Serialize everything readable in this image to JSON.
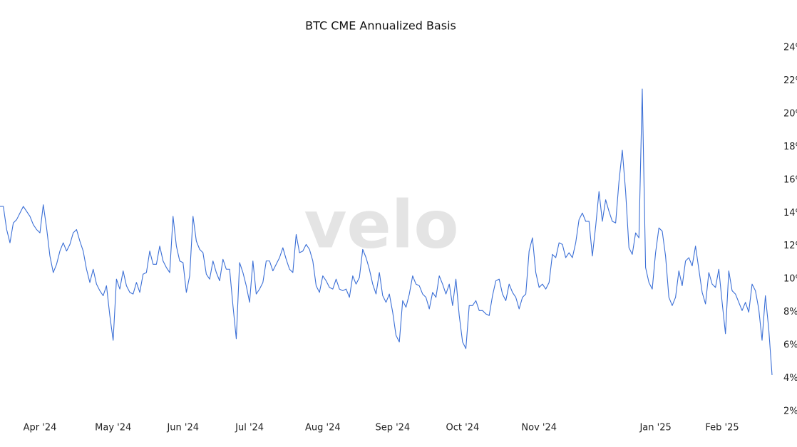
{
  "chart_data": {
    "type": "line",
    "title": "BTC CME Annualized Basis",
    "watermark": "velo",
    "categories": [
      null,
      null,
      null,
      null,
      null,
      null,
      null,
      null,
      null,
      null,
      null,
      null,
      "Apr '24",
      null,
      null,
      null,
      null,
      null,
      null,
      null,
      null,
      null,
      null,
      null,
      null,
      null,
      null,
      null,
      null,
      null,
      null,
      null,
      null,
      null,
      "May '24",
      null,
      null,
      null,
      null,
      null,
      null,
      null,
      null,
      null,
      null,
      null,
      null,
      null,
      null,
      null,
      null,
      null,
      null,
      null,
      null,
      "Jun '24",
      null,
      null,
      null,
      null,
      null,
      null,
      null,
      null,
      null,
      null,
      null,
      null,
      null,
      null,
      null,
      null,
      null,
      null,
      null,
      "Jul '24",
      null,
      null,
      null,
      null,
      null,
      null,
      null,
      null,
      null,
      null,
      null,
      null,
      null,
      null,
      null,
      null,
      null,
      null,
      null,
      null,
      null,
      "Aug '24",
      null,
      null,
      null,
      null,
      null,
      null,
      null,
      null,
      null,
      null,
      null,
      null,
      null,
      null,
      null,
      null,
      null,
      null,
      null,
      null,
      "Sep '24",
      null,
      null,
      null,
      null,
      null,
      null,
      null,
      null,
      null,
      null,
      null,
      null,
      null,
      null,
      null,
      null,
      null,
      null,
      null,
      null,
      "Oct '24",
      null,
      null,
      null,
      null,
      null,
      null,
      null,
      null,
      null,
      null,
      null,
      null,
      null,
      null,
      null,
      null,
      null,
      null,
      null,
      null,
      null,
      null,
      "Nov '24",
      null,
      null,
      null,
      null,
      null,
      null,
      null,
      null,
      null,
      null,
      null,
      null,
      null,
      null,
      null,
      null,
      null,
      null,
      null,
      null,
      null,
      null,
      null,
      null,
      null,
      null,
      null,
      null,
      null,
      null,
      null,
      null,
      null,
      null,
      "Jan '25",
      null,
      null,
      null,
      null,
      null,
      null,
      null,
      null,
      null,
      null,
      null,
      null,
      null,
      null,
      null,
      null,
      null,
      null,
      null,
      "Feb '25",
      null,
      null,
      null,
      null,
      null,
      null,
      null,
      null,
      null,
      null,
      null,
      null,
      null,
      null,
      null
    ],
    "series": [
      {
        "name": "BTC CME Annualized Basis",
        "color": "#3b6fd6",
        "values": [
          14.4,
          14.4,
          13.0,
          12.2,
          13.4,
          13.6,
          14.0,
          14.4,
          14.1,
          13.8,
          13.3,
          13.0,
          12.8,
          14.5,
          13.1,
          11.4,
          10.4,
          10.9,
          11.7,
          12.2,
          11.7,
          12.1,
          12.8,
          13.0,
          12.3,
          11.7,
          10.6,
          9.8,
          10.6,
          9.7,
          9.3,
          9.0,
          9.6,
          7.8,
          6.3,
          10.0,
          9.4,
          10.5,
          9.6,
          9.2,
          9.1,
          9.8,
          9.2,
          10.3,
          10.4,
          11.7,
          10.9,
          10.9,
          12.0,
          11.1,
          10.7,
          10.4,
          13.8,
          12.0,
          11.1,
          11.0,
          9.2,
          10.2,
          13.8,
          12.3,
          11.8,
          11.6,
          10.3,
          10.0,
          11.1,
          10.4,
          9.9,
          11.2,
          10.6,
          10.6,
          8.4,
          6.4,
          11.0,
          10.4,
          9.6,
          8.6,
          11.1,
          9.1,
          9.4,
          9.8,
          11.1,
          11.1,
          10.5,
          10.9,
          11.3,
          11.9,
          11.2,
          10.6,
          10.4,
          12.7,
          11.6,
          11.7,
          12.1,
          11.8,
          11.1,
          9.6,
          9.2,
          10.2,
          9.9,
          9.5,
          9.4,
          10.0,
          9.4,
          9.3,
          9.4,
          8.9,
          10.2,
          9.7,
          10.1,
          11.8,
          11.3,
          10.6,
          9.7,
          9.1,
          10.4,
          9.0,
          8.6,
          9.1,
          8.0,
          6.6,
          6.2,
          8.7,
          8.3,
          9.1,
          10.2,
          9.7,
          9.6,
          9.1,
          8.9,
          8.2,
          9.2,
          8.9,
          10.2,
          9.7,
          9.1,
          9.7,
          8.4,
          10.0,
          7.8,
          6.2,
          5.8,
          8.4,
          8.4,
          8.7,
          8.1,
          8.1,
          7.9,
          7.8,
          9.0,
          9.9,
          10.0,
          9.1,
          8.7,
          9.7,
          9.2,
          8.9,
          8.2,
          8.9,
          9.1,
          11.7,
          12.5,
          10.4,
          9.5,
          9.7,
          9.4,
          9.8,
          11.5,
          11.3,
          12.2,
          12.1,
          11.3,
          11.6,
          11.3,
          12.2,
          13.6,
          14.0,
          13.5,
          13.5,
          11.4,
          13.2,
          15.3,
          13.5,
          14.8,
          14.1,
          13.5,
          13.4,
          15.9,
          17.8,
          15.3,
          11.9,
          11.5,
          12.8,
          12.5,
          21.5,
          10.7,
          9.8,
          9.4,
          11.6,
          13.1,
          12.9,
          11.4,
          8.9,
          8.4,
          8.9,
          10.5,
          9.6,
          11.1,
          11.3,
          10.8,
          12.0,
          10.6,
          9.2,
          8.5,
          10.4,
          9.7,
          9.5,
          10.6,
          8.6,
          6.7,
          10.5,
          9.3,
          9.1,
          8.6,
          8.1,
          8.6,
          8.0,
          9.7,
          9.3,
          8.2,
          6.3,
          9.0,
          7.0,
          4.2
        ]
      }
    ],
    "ylim": [
      2,
      24
    ],
    "yticks": [
      {
        "value": 2,
        "label": "2%"
      },
      {
        "value": 4,
        "label": "4%"
      },
      {
        "value": 6,
        "label": "6%"
      },
      {
        "value": 8,
        "label": "8%"
      },
      {
        "value": 10,
        "label": "10%"
      },
      {
        "value": 12,
        "label": "12%"
      },
      {
        "value": 14,
        "label": "14%"
      },
      {
        "value": 16,
        "label": "16%"
      },
      {
        "value": 18,
        "label": "18%"
      },
      {
        "value": 20,
        "label": "20%"
      },
      {
        "value": 22,
        "label": "22%"
      },
      {
        "value": 24,
        "label": "24%"
      }
    ],
    "grid": false
  }
}
